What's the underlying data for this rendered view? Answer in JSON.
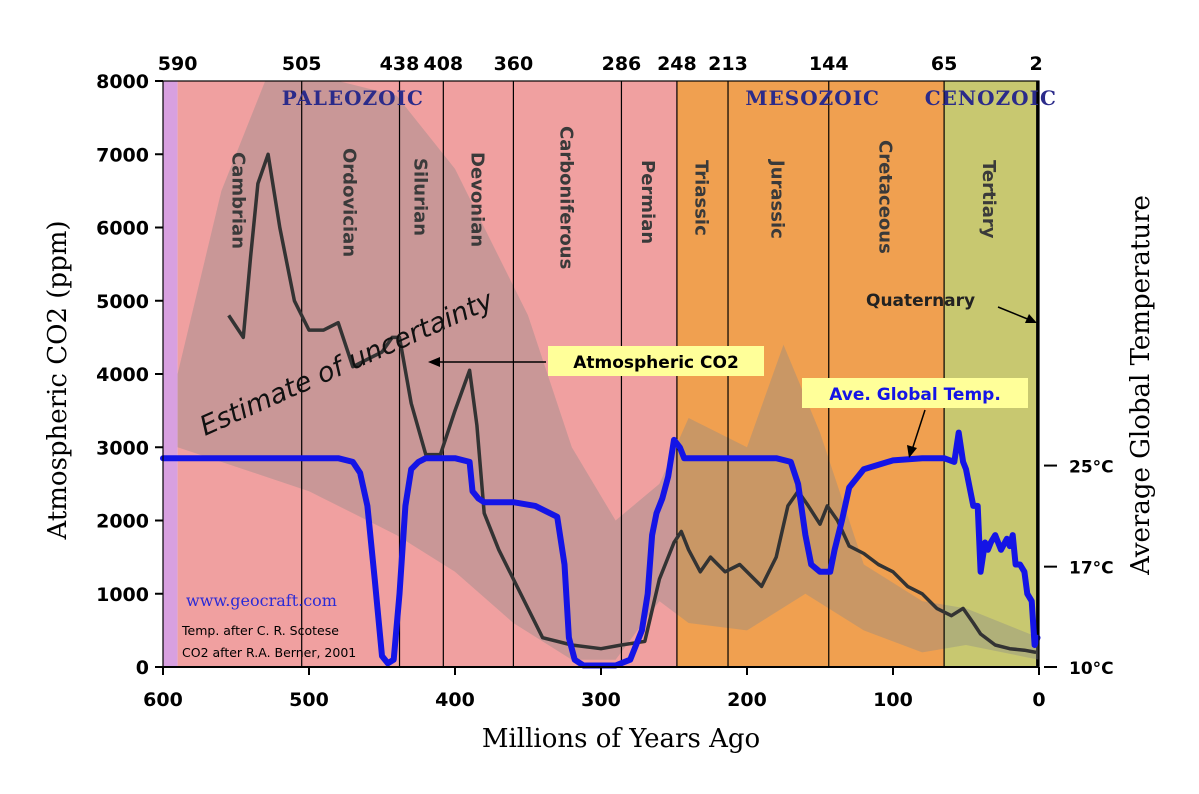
{
  "chart_data": {
    "type": "line",
    "xlabel": "Millions of Years Ago",
    "ylabel": "Atmospheric CO2 (ppm)",
    "y2label": "Average Global Temperature",
    "xlim": [
      600,
      0
    ],
    "ylim": [
      0,
      8000
    ],
    "x_ticks": [
      "600",
      "500",
      "400",
      "300",
      "200",
      "100",
      "0"
    ],
    "y_ticks": [
      "0",
      "1000",
      "2000",
      "3000",
      "4000",
      "5000",
      "6000",
      "7000",
      "8000"
    ],
    "y2_ticks": [
      {
        "label": "25°C",
        "co2_equiv": 2750
      },
      {
        "label": "17°C",
        "co2_equiv": 1370
      },
      {
        "label": "10°C",
        "co2_equiv": 0
      }
    ],
    "top_ticks": [
      {
        "label": "590",
        "x": 590
      },
      {
        "label": "505",
        "x": 505
      },
      {
        "label": "438",
        "x": 438
      },
      {
        "label": "408",
        "x": 408
      },
      {
        "label": "360",
        "x": 360
      },
      {
        "label": "286",
        "x": 286
      },
      {
        "label": "248",
        "x": 248
      },
      {
        "label": "213",
        "x": 213
      },
      {
        "label": "144",
        "x": 144
      },
      {
        "label": "65",
        "x": 65
      },
      {
        "label": "2",
        "x": 2
      }
    ],
    "eras": [
      {
        "label": "PALEOZOIC",
        "x": 470
      },
      {
        "label": "MESOZOIC",
        "x": 155
      },
      {
        "label": "CENOZOIC",
        "x": 33
      }
    ],
    "periods": [
      {
        "label": "Cambrian",
        "from": 590,
        "to": 505,
        "color": "#f0a0a0"
      },
      {
        "label": "Ordovician",
        "from": 505,
        "to": 438,
        "color": "#f0a0a0"
      },
      {
        "label": "Silurian",
        "from": 438,
        "to": 408,
        "color": "#f0a0a0"
      },
      {
        "label": "Devonian",
        "from": 408,
        "to": 360,
        "color": "#f0a0a0"
      },
      {
        "label": "Carboniferous",
        "from": 360,
        "to": 286,
        "color": "#f0a0a0"
      },
      {
        "label": "Permian",
        "from": 286,
        "to": 248,
        "color": "#f0a0a0"
      },
      {
        "label": "Triassic",
        "from": 248,
        "to": 213,
        "color": "#f0a050"
      },
      {
        "label": "Jurassic",
        "from": 213,
        "to": 144,
        "color": "#f0a050"
      },
      {
        "label": "Cretaceous",
        "from": 144,
        "to": 65,
        "color": "#f0a050"
      },
      {
        "label": "Tertiary",
        "from": 65,
        "to": 2,
        "color": "#c8c870"
      }
    ],
    "pre_cambrian_color": "#d8a0e0",
    "series": [
      {
        "name": "Atmospheric CO2",
        "color": "#333333",
        "x": [
          555,
          545,
          540,
          535,
          528,
          520,
          510,
          500,
          490,
          480,
          475,
          470,
          460,
          450,
          443,
          438,
          430,
          420,
          410,
          400,
          390,
          385,
          380,
          370,
          360,
          340,
          320,
          300,
          286,
          270,
          260,
          250,
          245,
          240,
          232,
          225,
          215,
          205,
          190,
          180,
          172,
          165,
          158,
          150,
          145,
          138,
          130,
          120,
          110,
          100,
          90,
          80,
          70,
          60,
          52,
          45,
          40,
          30,
          20,
          10,
          2
        ],
        "y": [
          4800,
          4500,
          5600,
          6600,
          7000,
          6000,
          5000,
          4600,
          4600,
          4700,
          4400,
          4100,
          4200,
          4300,
          4500,
          4500,
          3600,
          2900,
          2900,
          3500,
          4050,
          3300,
          2100,
          1600,
          1200,
          400,
          300,
          250,
          300,
          350,
          1200,
          1700,
          1850,
          1600,
          1300,
          1500,
          1300,
          1400,
          1100,
          1500,
          2200,
          2400,
          2200,
          1950,
          2200,
          2000,
          1650,
          1550,
          1400,
          1300,
          1100,
          1000,
          800,
          700,
          800,
          600,
          450,
          300,
          250,
          230,
          200
        ]
      },
      {
        "name": "Ave. Global Temp.",
        "color": "#1414e6",
        "units": "co2_axis_equiv",
        "x": [
          600,
          560,
          520,
          500,
          480,
          470,
          465,
          460,
          455,
          450,
          446,
          442,
          438,
          434,
          430,
          425,
          420,
          410,
          400,
          390,
          388,
          384,
          380,
          370,
          360,
          345,
          335,
          330,
          325,
          322,
          318,
          312,
          300,
          290,
          280,
          272,
          268,
          265,
          262,
          258,
          254,
          250,
          246,
          243,
          240,
          220,
          200,
          180,
          170,
          165,
          160,
          156,
          150,
          143,
          140,
          135,
          130,
          120,
          100,
          80,
          65,
          58,
          55,
          52,
          50,
          45,
          42,
          40,
          37,
          35,
          33,
          30,
          26,
          22,
          20,
          18,
          16,
          13,
          10,
          8,
          5,
          3,
          1
        ],
        "y": [
          2850,
          2850,
          2850,
          2850,
          2850,
          2800,
          2650,
          2200,
          1200,
          150,
          50,
          100,
          1000,
          2200,
          2700,
          2800,
          2850,
          2850,
          2850,
          2800,
          2400,
          2300,
          2250,
          2250,
          2250,
          2200,
          2100,
          2050,
          1400,
          400,
          100,
          20,
          20,
          20,
          100,
          500,
          1000,
          1800,
          2100,
          2300,
          2600,
          3100,
          3000,
          2850,
          2850,
          2850,
          2850,
          2850,
          2800,
          2500,
          1800,
          1400,
          1300,
          1300,
          1600,
          2000,
          2450,
          2700,
          2820,
          2850,
          2850,
          2800,
          3200,
          2800,
          2700,
          2200,
          2200,
          1300,
          1700,
          1600,
          1700,
          1800,
          1600,
          1750,
          1650,
          1800,
          1400,
          1400,
          1300,
          1000,
          900,
          300,
          400
        ]
      }
    ],
    "uncertainty_band": {
      "upper": [
        [
          590,
          4000
        ],
        [
          560,
          6500
        ],
        [
          530,
          8000
        ],
        [
          480,
          8000
        ],
        [
          440,
          7800
        ],
        [
          400,
          6800
        ],
        [
          380,
          6000
        ],
        [
          350,
          4800
        ],
        [
          320,
          3000
        ],
        [
          290,
          2000
        ],
        [
          260,
          2500
        ],
        [
          240,
          3400
        ],
        [
          200,
          3000
        ],
        [
          175,
          4400
        ],
        [
          150,
          3200
        ],
        [
          120,
          1400
        ],
        [
          80,
          900
        ],
        [
          50,
          800
        ],
        [
          0,
          400
        ]
      ],
      "lower": [
        [
          590,
          3000
        ],
        [
          560,
          2800
        ],
        [
          500,
          2400
        ],
        [
          440,
          1800
        ],
        [
          400,
          1300
        ],
        [
          360,
          600
        ],
        [
          320,
          100
        ],
        [
          290,
          100
        ],
        [
          260,
          900
        ],
        [
          240,
          600
        ],
        [
          200,
          500
        ],
        [
          160,
          1000
        ],
        [
          120,
          500
        ],
        [
          80,
          200
        ],
        [
          50,
          300
        ],
        [
          0,
          100
        ]
      ]
    },
    "annotations": [
      {
        "text": "Estimate of uncertainty"
      },
      {
        "text": "Atmospheric CO2"
      },
      {
        "text": "Ave. Global Temp."
      },
      {
        "text": "Quaternary"
      },
      {
        "text": "www.geocraft.com"
      },
      {
        "text": "Temp. after C. R. Scotese"
      },
      {
        "text": "CO2 after R.A. Berner, 2001"
      }
    ]
  }
}
